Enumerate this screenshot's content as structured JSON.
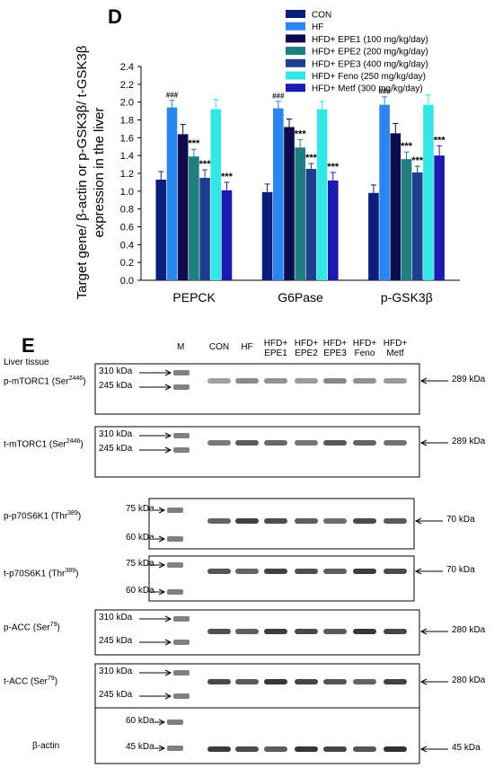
{
  "panel_d": {
    "letter": "D"
  },
  "chart_data": {
    "type": "bar",
    "ylabel": "Target gene/ β-actin or p-GSK3β/ t-GSK3β expression in the liver",
    "ylabel_lines": [
      "Target gene/ β-actin or p-GSK3β/ t-GSK3β",
      "expression in the liver"
    ],
    "ylim": [
      0,
      2.4
    ],
    "yticks": [
      "0.0",
      "0.2",
      "0.4",
      "0.6",
      "0.8",
      "1.0",
      "1.2",
      "1.4",
      "1.6",
      "1.8",
      "2.0",
      "2.2",
      "2.4"
    ],
    "categories": [
      "PEPCK",
      "G6Pase",
      "p-GSK3β"
    ],
    "legend_placement": "top-right",
    "series": [
      {
        "name": "CON",
        "color": "#0b1f7a",
        "values": [
          1.13,
          0.99,
          0.98
        ],
        "err": [
          0.09,
          0.09,
          0.09
        ],
        "marks": [
          "",
          "",
          ""
        ]
      },
      {
        "name": "HF",
        "color": "#2a86f0",
        "values": [
          1.94,
          1.93,
          1.97
        ],
        "err": [
          0.08,
          0.08,
          0.09
        ],
        "marks": [
          "###",
          "###",
          "###"
        ]
      },
      {
        "name": "HFD+ EPE1 (100 mg/kg/day)",
        "color": "#0c0c4e",
        "values": [
          1.64,
          1.72,
          1.65
        ],
        "err": [
          0.11,
          0.09,
          0.11
        ],
        "marks": [
          "",
          "",
          ""
        ]
      },
      {
        "name": "HFD+ EPE2 (200 mg/kg/day)",
        "color": "#1f7f7f",
        "values": [
          1.39,
          1.49,
          1.36
        ],
        "err": [
          0.08,
          0.09,
          0.08
        ],
        "marks": [
          "***",
          "***",
          "***"
        ]
      },
      {
        "name": "HFD+ EPE3 (400 mg/kg/day)",
        "color": "#1d3f8e",
        "values": [
          1.15,
          1.25,
          1.21
        ],
        "err": [
          0.09,
          0.06,
          0.07
        ],
        "marks": [
          "***",
          "***",
          "***"
        ]
      },
      {
        "name": "HFD+ Feno (250 mg/kg/day)",
        "color": "#35e6e6",
        "values": [
          1.92,
          1.92,
          1.97
        ],
        "err": [
          0.11,
          0.09,
          0.11
        ],
        "marks": [
          "",
          "",
          ""
        ]
      },
      {
        "name": "HFD+ Metf (300 mg/kg/day)",
        "color": "#1a1ab0",
        "values": [
          1.01,
          1.12,
          1.4
        ],
        "err": [
          0.09,
          0.09,
          0.11
        ],
        "marks": [
          "***",
          "***",
          "***"
        ]
      }
    ]
  },
  "panel_e": {
    "letter": "E",
    "tissue": "Liver tissue",
    "marker_lane": "M",
    "lanes": [
      {
        "line1": "CON",
        "line2": ""
      },
      {
        "line1": "HF",
        "line2": ""
      },
      {
        "line1": "HFD+",
        "line2": "EPE1"
      },
      {
        "line1": "HFD+",
        "line2": "EPE2"
      },
      {
        "line1": "HFD+",
        "line2": "EPE3"
      },
      {
        "line1": "HFD+",
        "line2": "Feno"
      },
      {
        "line1": "HFD+",
        "line2": "Metf"
      }
    ],
    "blots": [
      {
        "label": "p-mTORC1 (Ser",
        "site": "2446",
        "close": ")",
        "markers": [
          "310 kDa",
          "245 kDa"
        ],
        "target": "289 kDa"
      },
      {
        "label": "t-mTORC1 (Ser",
        "site": "2446",
        "close": ")",
        "markers": [
          "310 kDa",
          "245 kDa"
        ],
        "target": "289 kDa"
      },
      {
        "label": "p-p70S6K1 (Thr",
        "site": "389",
        "close": ")",
        "markers": [
          "75 kDa",
          "60 kDa"
        ],
        "target": "70 kDa"
      },
      {
        "label": "t-p70S6K1 (Thr",
        "site": "389",
        "close": ")",
        "markers": [
          "75 kDa",
          "60 kDa"
        ],
        "target": "70 kDa"
      },
      {
        "label": "p-ACC (Ser",
        "site": "79",
        "close": ")",
        "markers": [
          "310 kDa",
          "245 kDa"
        ],
        "target": "280 kDa"
      },
      {
        "label": "t-ACC (Ser",
        "site": "79",
        "close": ")",
        "markers": [
          "310 kDa",
          "245 kDa"
        ],
        "target": "280 kDa"
      },
      {
        "label": "β-actin",
        "site": "",
        "close": "",
        "markers": [
          "60 kDa",
          "45 kDa"
        ],
        "target": "45 kDa"
      }
    ]
  }
}
